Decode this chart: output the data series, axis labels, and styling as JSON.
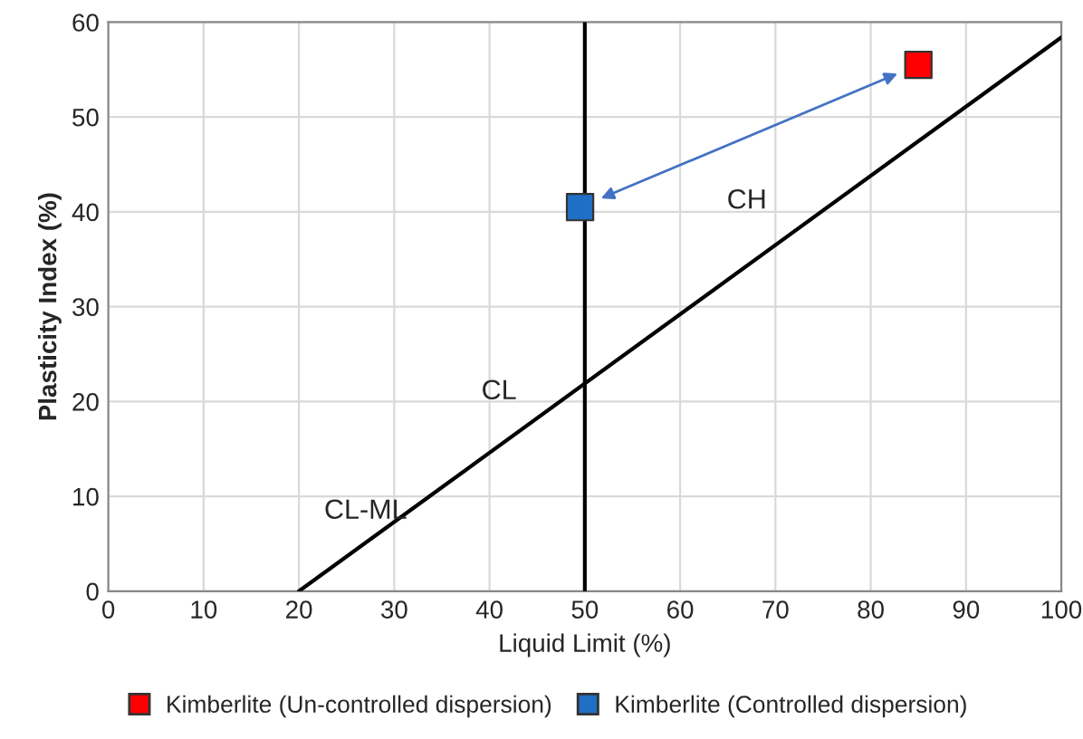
{
  "chart_data": {
    "type": "scatter",
    "xlabel": "Liquid Limit (%)",
    "ylabel": "Plasticity Index (%)",
    "xlim": [
      0,
      100
    ],
    "ylim": [
      0,
      60
    ],
    "xticks": [
      0,
      10,
      20,
      30,
      40,
      50,
      60,
      70,
      80,
      90,
      100
    ],
    "yticks": [
      0,
      10,
      20,
      30,
      40,
      50,
      60
    ],
    "grid": true,
    "legend": "bottom",
    "marker": "square",
    "series": [
      {
        "type": "line",
        "color": "#000000",
        "x": [
          20,
          100
        ],
        "values": [
          0,
          58.4
        ],
        "marker": "none"
      },
      {
        "name": "Kimberlite (Un-controlled dispersion)",
        "color": "#ff0000",
        "x": [
          85
        ],
        "values": [
          55.5
        ]
      },
      {
        "name": "Kimberlite (Controlled dispersion)",
        "color": "#1f6fc5",
        "x": [
          49.5
        ],
        "values": [
          40.5
        ]
      }
    ],
    "ref_lines": [
      {
        "axis": "x",
        "value": 50,
        "color": "#000000"
      }
    ],
    "annotations": [
      "CH",
      "CL",
      "CL-ML"
    ]
  }
}
